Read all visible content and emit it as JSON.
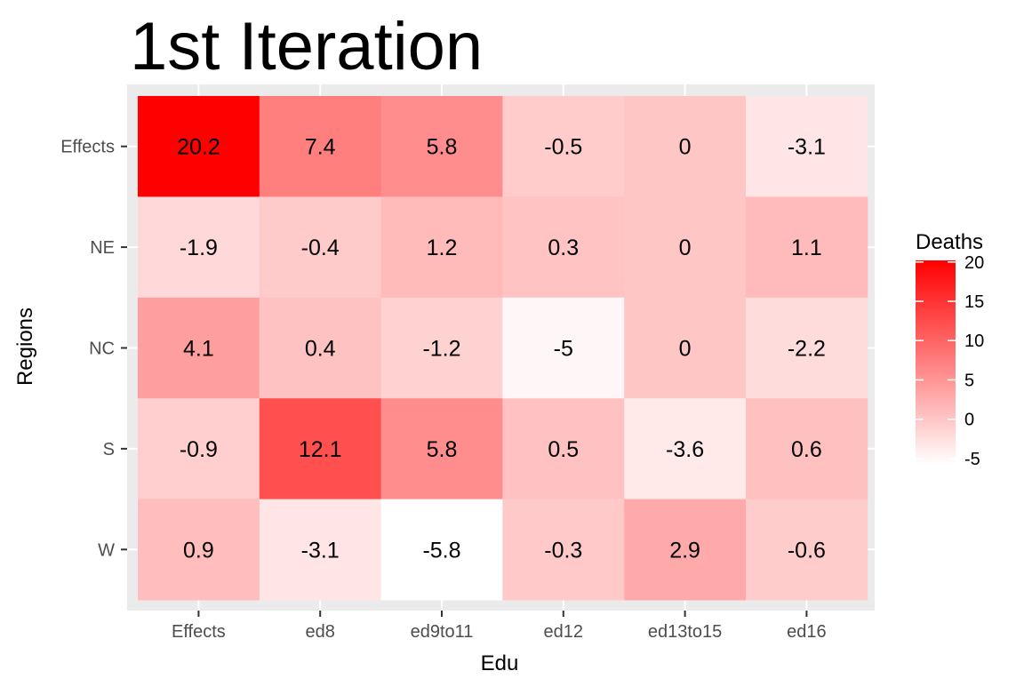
{
  "chart_data": {
    "type": "heatmap",
    "title": "1st Iteration",
    "xlabel": "Edu",
    "ylabel": "Regions",
    "x_categories": [
      "Effects",
      "ed8",
      "ed9to11",
      "ed12",
      "ed13to15",
      "ed16"
    ],
    "y_categories": [
      "Effects",
      "NE",
      "NC",
      "S",
      "W"
    ],
    "values": [
      [
        20.2,
        7.4,
        5.8,
        -0.5,
        0,
        -3.1
      ],
      [
        -1.9,
        -0.4,
        1.2,
        0.3,
        0,
        1.1
      ],
      [
        4.1,
        0.4,
        -1.2,
        -5,
        0,
        -2.2
      ],
      [
        -0.9,
        12.1,
        5.8,
        0.5,
        -3.6,
        0.6
      ],
      [
        0.9,
        -3.1,
        -5.8,
        -0.3,
        2.9,
        -0.6
      ]
    ],
    "value_labels": [
      [
        "20.2",
        "7.4",
        "5.8",
        "-0.5",
        "0",
        "-3.1"
      ],
      [
        "-1.9",
        "-0.4",
        "1.2",
        "0.3",
        "0",
        "1.1"
      ],
      [
        "4.1",
        "0.4",
        "-1.2",
        "-5",
        "0",
        "-2.2"
      ],
      [
        "-0.9",
        "12.1",
        "5.8",
        "0.5",
        "-3.6",
        "0.6"
      ],
      [
        "0.9",
        "-3.1",
        "-5.8",
        "-0.3",
        "2.9",
        "-0.6"
      ]
    ],
    "legend": {
      "title": "Deaths",
      "placement": "right",
      "ticks": [
        20,
        15,
        10,
        5,
        0,
        -5
      ],
      "tick_labels": [
        "20",
        "15",
        "10",
        "5",
        "0",
        "-5"
      ]
    },
    "color_range": [
      -5.8,
      20.2
    ],
    "colors": {
      "low": "#ffffff",
      "high": "#ff0000",
      "panel": "#ebebeb",
      "grid": "#ffffff"
    }
  }
}
